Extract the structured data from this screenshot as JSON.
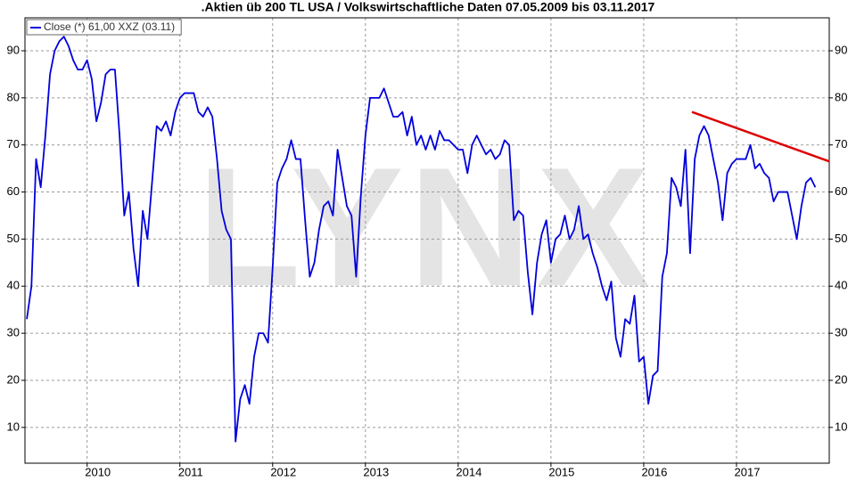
{
  "chart_data": {
    "type": "line",
    "title": ".Aktien üb 200 TL USA / Volkswirtschaftliche Daten 07.05.2009 bis 03.11.2017",
    "watermark": "LYNX",
    "grid": true,
    "legend": "top-left",
    "xlim": [
      2009.33,
      2018.0
    ],
    "xticks": [
      2010,
      2011,
      2012,
      2013,
      2014,
      2015,
      2016,
      2017
    ],
    "ylim": [
      2.4,
      97
    ],
    "yticks": [
      10,
      20,
      30,
      40,
      50,
      60,
      70,
      80,
      90
    ],
    "series": [
      {
        "name": "Close (*) 61,00 XXZ (03.11)",
        "color": "#0000dd",
        "x": [
          2009.35,
          2009.4,
          2009.45,
          2009.5,
          2009.55,
          2009.6,
          2009.65,
          2009.7,
          2009.75,
          2009.8,
          2009.85,
          2009.9,
          2009.95,
          2010.0,
          2010.05,
          2010.1,
          2010.15,
          2010.2,
          2010.25,
          2010.3,
          2010.35,
          2010.4,
          2010.45,
          2010.5,
          2010.55,
          2010.6,
          2010.65,
          2010.7,
          2010.75,
          2010.8,
          2010.85,
          2010.9,
          2010.95,
          2011.0,
          2011.05,
          2011.1,
          2011.15,
          2011.2,
          2011.25,
          2011.3,
          2011.35,
          2011.4,
          2011.45,
          2011.5,
          2011.55,
          2011.6,
          2011.65,
          2011.7,
          2011.75,
          2011.8,
          2011.85,
          2011.9,
          2011.95,
          2012.0,
          2012.05,
          2012.1,
          2012.15,
          2012.2,
          2012.25,
          2012.3,
          2012.35,
          2012.4,
          2012.45,
          2012.5,
          2012.55,
          2012.6,
          2012.65,
          2012.7,
          2012.75,
          2012.8,
          2012.85,
          2012.9,
          2012.95,
          2013.0,
          2013.05,
          2013.1,
          2013.15,
          2013.2,
          2013.25,
          2013.3,
          2013.35,
          2013.4,
          2013.45,
          2013.5,
          2013.55,
          2013.6,
          2013.65,
          2013.7,
          2013.75,
          2013.8,
          2013.85,
          2013.9,
          2013.95,
          2014.0,
          2014.05,
          2014.1,
          2014.15,
          2014.2,
          2014.25,
          2014.3,
          2014.35,
          2014.4,
          2014.45,
          2014.5,
          2014.55,
          2014.6,
          2014.65,
          2014.7,
          2014.75,
          2014.8,
          2014.85,
          2014.9,
          2014.95,
          2015.0,
          2015.05,
          2015.1,
          2015.15,
          2015.2,
          2015.25,
          2015.3,
          2015.35,
          2015.4,
          2015.45,
          2015.5,
          2015.55,
          2015.6,
          2015.65,
          2015.7,
          2015.75,
          2015.8,
          2015.85,
          2015.9,
          2015.95,
          2016.0,
          2016.05,
          2016.1,
          2016.15,
          2016.2,
          2016.25,
          2016.3,
          2016.35,
          2016.4,
          2016.45,
          2016.5,
          2016.55,
          2016.6,
          2016.65,
          2016.7,
          2016.75,
          2016.8,
          2016.85,
          2016.9,
          2016.95,
          2017.0,
          2017.05,
          2017.1,
          2017.15,
          2017.2,
          2017.25,
          2017.3,
          2017.35,
          2017.4,
          2017.45,
          2017.5,
          2017.55,
          2017.6,
          2017.65,
          2017.7,
          2017.75,
          2017.8,
          2017.85
        ],
        "values": [
          33,
          40,
          67,
          61,
          72,
          85,
          90,
          92,
          93,
          91,
          88,
          86,
          86,
          88,
          84,
          75,
          79,
          85,
          86,
          86,
          72,
          55,
          60,
          48,
          40,
          56,
          50,
          62,
          74,
          73,
          75,
          72,
          77,
          80,
          81,
          81,
          81,
          77,
          76,
          78,
          76,
          67,
          56,
          52,
          50,
          7,
          16,
          19,
          15,
          25,
          30,
          30,
          28,
          44,
          62,
          65,
          67,
          71,
          67,
          67,
          54,
          42,
          45,
          52,
          57,
          58,
          55,
          69,
          63,
          57,
          55,
          42,
          59,
          72,
          80,
          80,
          80,
          82,
          79,
          76,
          76,
          77,
          72,
          76,
          70,
          72,
          69,
          72,
          69,
          73,
          71,
          71,
          70,
          69,
          69,
          64,
          70,
          72,
          70,
          68,
          69,
          67,
          68,
          71,
          70,
          54,
          56,
          55,
          43,
          34,
          45,
          51,
          54,
          45,
          50,
          51,
          55,
          50,
          52,
          57,
          50,
          51,
          47,
          44,
          40,
          37,
          41,
          29,
          25,
          33,
          32,
          38,
          24,
          25,
          15,
          21,
          22,
          42,
          47,
          63,
          61,
          57,
          69,
          47,
          67,
          72,
          74,
          72,
          67,
          62,
          54,
          64,
          66,
          67,
          67,
          67,
          70,
          65,
          66,
          64,
          63,
          58,
          60,
          60,
          60,
          55,
          50,
          57,
          62,
          63,
          61
        ]
      }
    ],
    "trendline": {
      "color": "#dd0000",
      "x": [
        2016.52,
        2018.0
      ],
      "values": [
        77,
        66.5
      ]
    }
  }
}
